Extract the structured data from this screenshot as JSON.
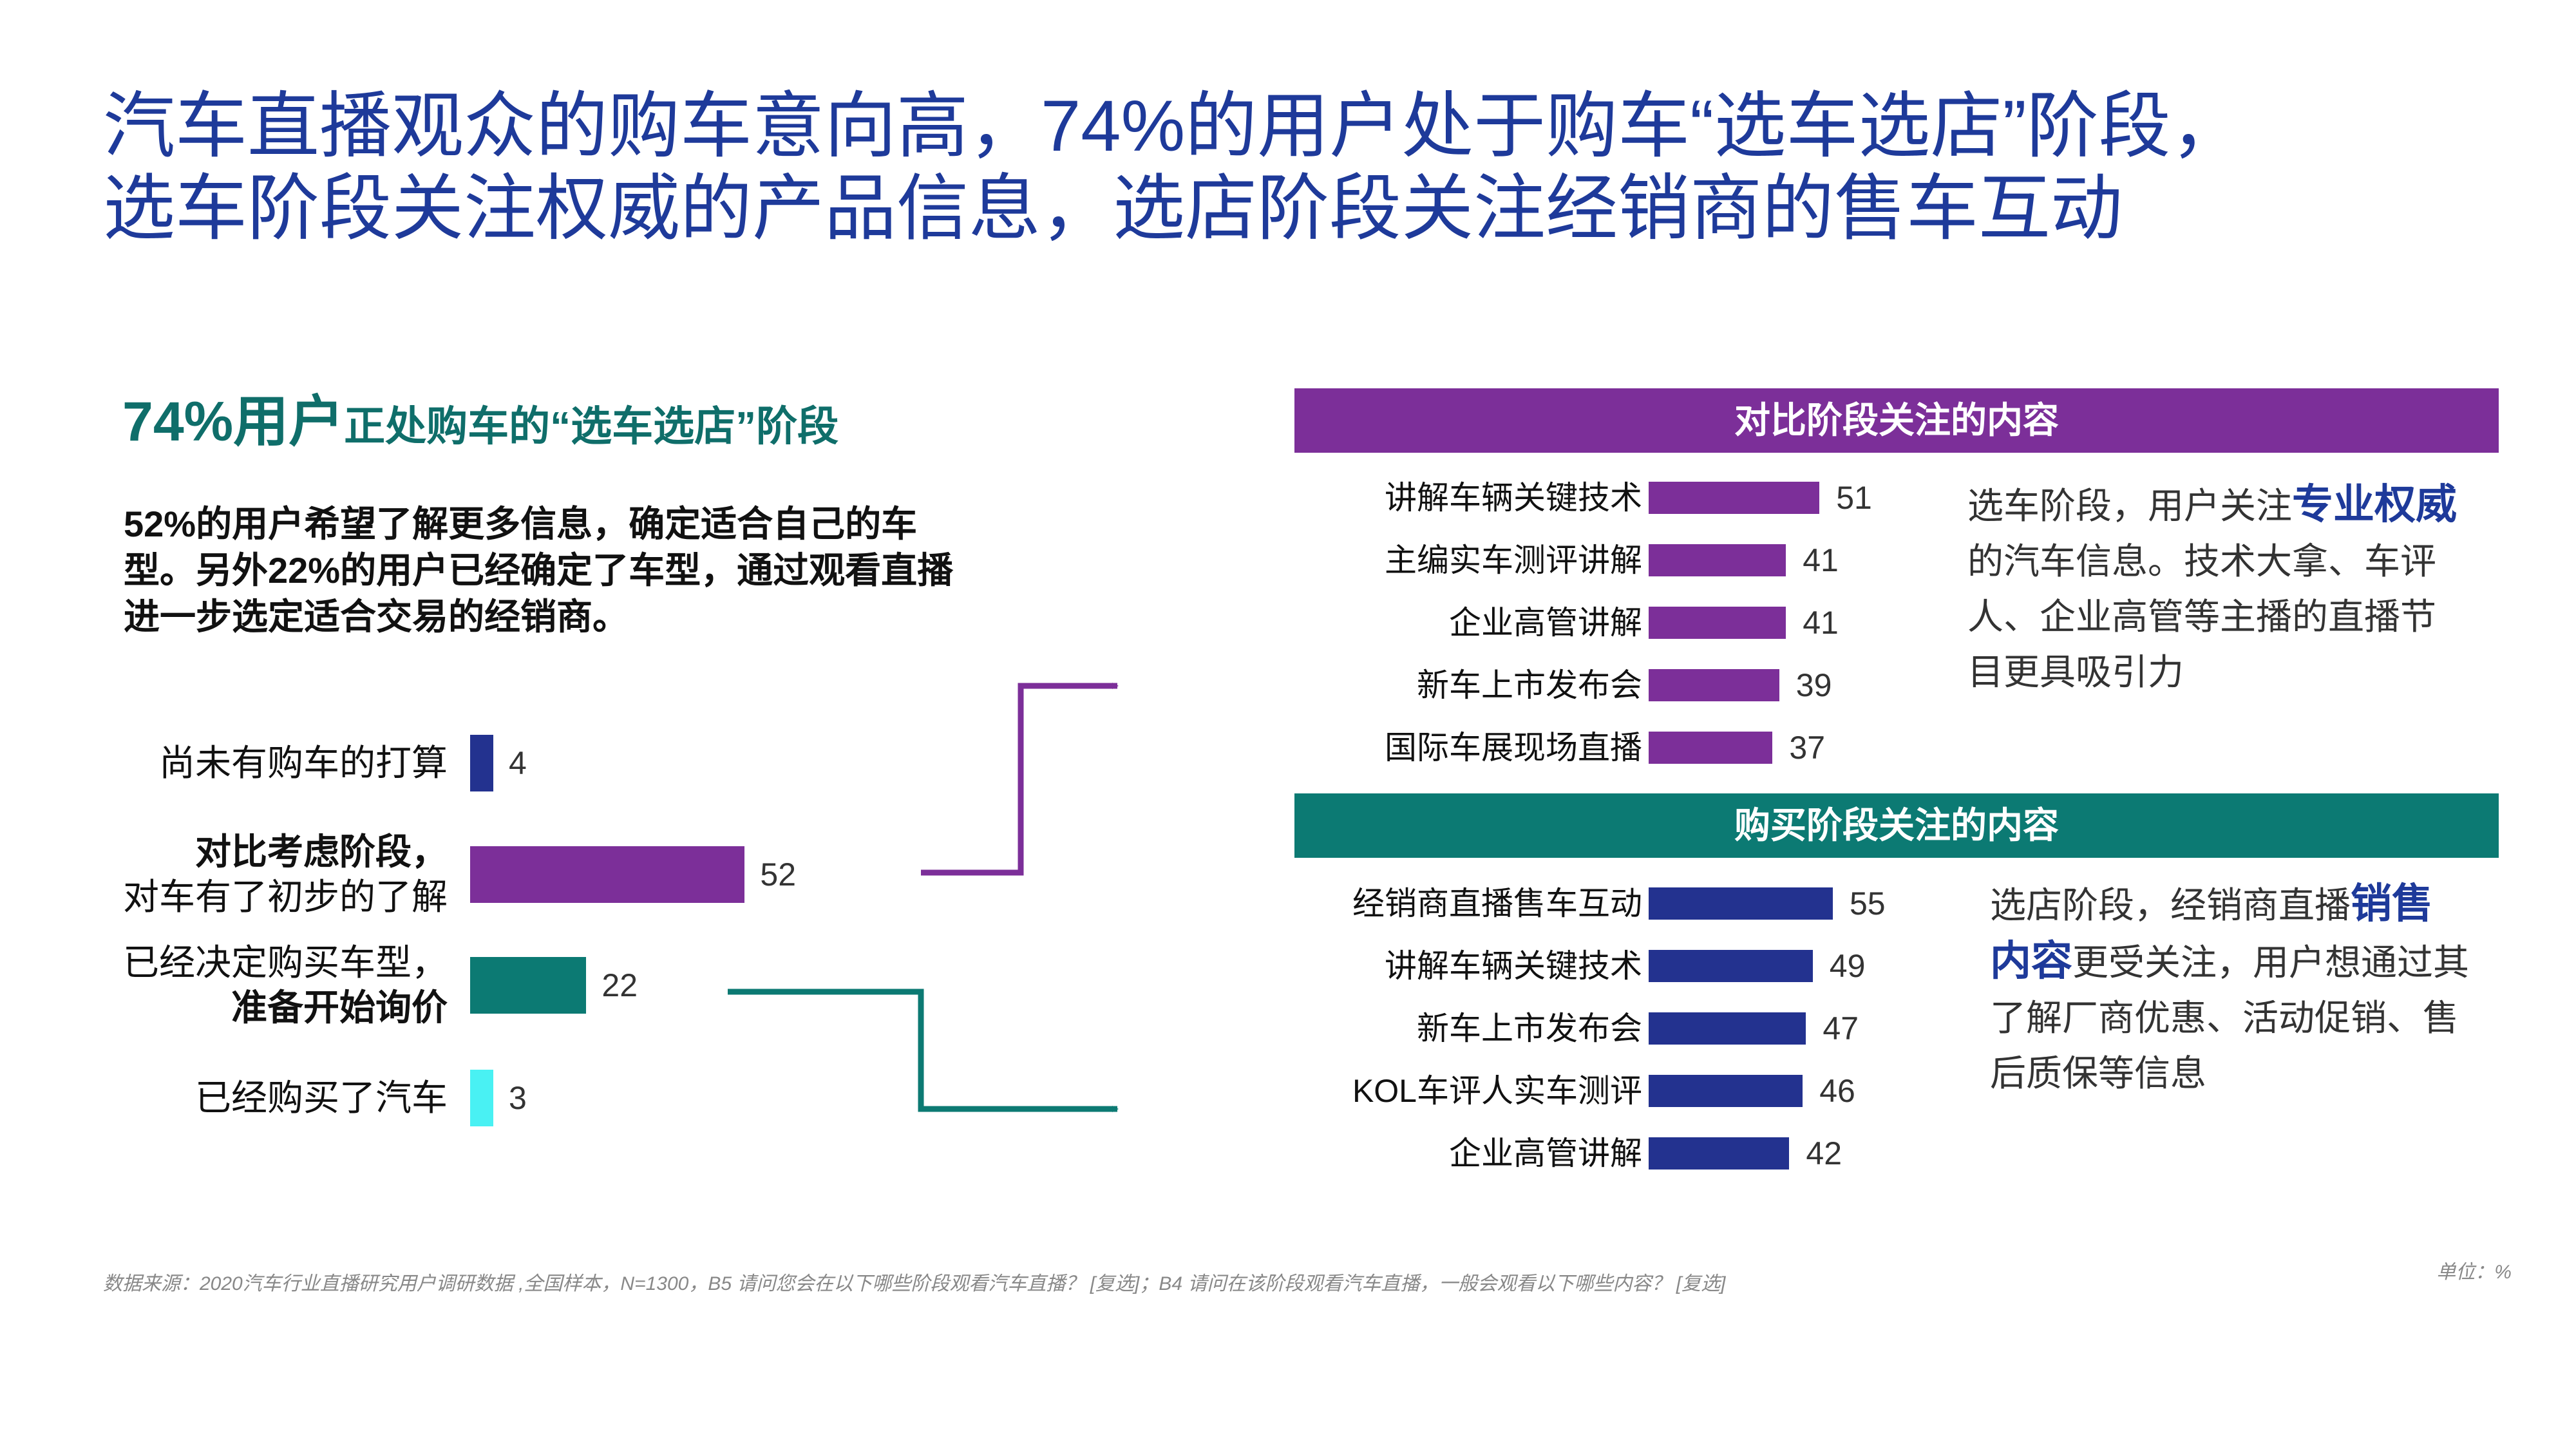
{
  "title": {
    "line1": "汽车直播观众的购车意向高，74%的用户处于购车“选车选店”阶段，",
    "line2": "选车阶段关注权威的产品信息，选店阶段关注经销商的售车互动"
  },
  "subhead": {
    "big": "74%用户",
    "small": "正处购车的“选车选店”阶段"
  },
  "description": {
    "p1": "52%的用户希望了解更多信息，确定适合自己的车型。另外22%的用户已经确定了车型，通过观",
    "p2": "看直播进一步选定适合交易的经销商。"
  },
  "colors": {
    "blue": "#1e3a9a",
    "purple": "#7c2f99",
    "teal": "#0c7a73",
    "cyan": "#49f1f3"
  },
  "chart_data": [
    {
      "type": "bar",
      "orientation": "horizontal",
      "categories": [
        "尚未有购车的打算",
        "对比考虑阶段，对车有了初步的了解",
        "已经决定购买车型，准备开始询价",
        "已经购买了汽车"
      ],
      "values": [
        4,
        52,
        22,
        3
      ],
      "label_lines": [
        [
          "尚未有购车的打算"
        ],
        [
          "对比考虑阶段，",
          "对车有了初步的了解"
        ],
        [
          "已经决定购买车型，",
          "准备开始询价"
        ],
        [
          "已经购买了汽车"
        ]
      ],
      "colors": [
        "#23328f",
        "#7c2f99",
        "#0c7a73",
        "#49f1f3"
      ],
      "unit": "%"
    },
    {
      "type": "bar",
      "orientation": "horizontal",
      "title": "对比阶段关注的内容",
      "categories": [
        "讲解车辆关键技术",
        "主编实车测评讲解",
        "企业高管讲解",
        "新车上市发布会",
        "国际车展现场直播"
      ],
      "values": [
        51,
        41,
        41,
        39,
        37
      ],
      "color": "#7c2f99",
      "unit": "%"
    },
    {
      "type": "bar",
      "orientation": "horizontal",
      "title": "购买阶段关注的内容",
      "categories": [
        "经销商直播售车互动",
        "讲解车辆关键技术",
        "新车上市发布会",
        "KOL车评人实车测评",
        "企业高管讲解"
      ],
      "values": [
        55,
        49,
        47,
        46,
        42
      ],
      "color": "#23328f",
      "unit": "%"
    }
  ],
  "note1": {
    "pre": "选车阶段，用户关注",
    "hl": "专业权威",
    "post": "的汽车信息。技术大拿、车评人、企业高管等主播的直播节目更具吸引力"
  },
  "note2": {
    "pre": "选店阶段，经销商直播",
    "hl": "销售内容",
    "post": "更受关注，用户想通过其了解厂商优惠、活动促销、售后质保等信息"
  },
  "source": "数据来源：2020汽车行业直播研究用户调研数据 ,全国样本，N=1300，B5 请问您会在以下哪些阶段观看汽车直播？ [复选]；B4 请问在该阶段观看汽车直播，一般会观看以下哪些内容？ [复选]",
  "unit": "单位：%"
}
